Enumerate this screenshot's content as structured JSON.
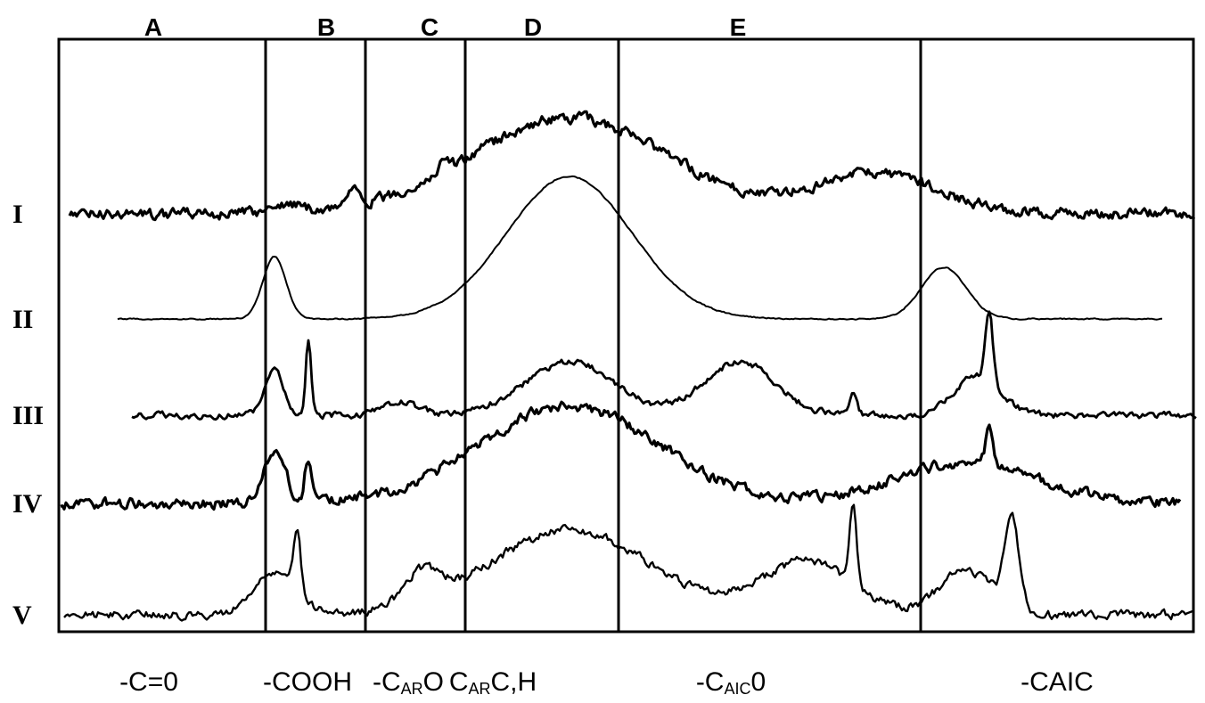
{
  "chart_data": {
    "type": "line",
    "title": "",
    "regions": [
      {
        "letter": "A",
        "label": "-C=0"
      },
      {
        "letter": "B",
        "label": "-COOH"
      },
      {
        "letter": "C",
        "label": "-C",
        "label_sub": "AR",
        "label_tail": "O"
      },
      {
        "letter": "D",
        "label": "C",
        "label_sub": "AR",
        "label_tail": "C,H"
      },
      {
        "letter": "E",
        "label": "-C",
        "label_sub": "AIC",
        "label_tail": "0"
      },
      {
        "letter": "",
        "label": "-CAIC"
      }
    ],
    "series": [
      {
        "name": "I",
        "noise": 5,
        "features": [
          [
            0.2,
            10,
            18
          ],
          [
            0.26,
            22,
            8
          ],
          [
            0.34,
            14,
            6
          ],
          [
            0.45,
            108,
            110
          ],
          [
            0.72,
            45,
            70
          ]
        ]
      },
      {
        "name": "II",
        "noise": 0.6,
        "features": [
          [
            0.19,
            70,
            13
          ],
          [
            0.45,
            160,
            70
          ],
          [
            0.78,
            58,
            25
          ]
        ]
      },
      {
        "name": "III",
        "noise": 3,
        "features": [
          [
            0.19,
            50,
            10
          ],
          [
            0.22,
            85,
            3
          ],
          [
            0.3,
            15,
            20
          ],
          [
            0.45,
            60,
            50
          ],
          [
            0.6,
            60,
            40
          ],
          [
            0.7,
            25,
            4
          ],
          [
            0.82,
            80,
            4
          ],
          [
            0.81,
            45,
            25
          ]
        ]
      },
      {
        "name": "IV",
        "noise": 5,
        "features": [
          [
            0.19,
            60,
            12
          ],
          [
            0.22,
            50,
            4
          ],
          [
            0.45,
            110,
            100
          ],
          [
            0.8,
            45,
            80
          ],
          [
            0.82,
            40,
            4
          ]
        ]
      },
      {
        "name": "V",
        "noise": 4,
        "features": [
          [
            0.21,
            70,
            4
          ],
          [
            0.19,
            45,
            25
          ],
          [
            0.32,
            35,
            20
          ],
          [
            0.45,
            95,
            90
          ],
          [
            0.66,
            60,
            50
          ],
          [
            0.7,
            90,
            4
          ],
          [
            0.84,
            100,
            8
          ],
          [
            0.8,
            50,
            30
          ]
        ]
      }
    ],
    "x_range": [
      0,
      1
    ],
    "grid": false,
    "legend": "none"
  }
}
